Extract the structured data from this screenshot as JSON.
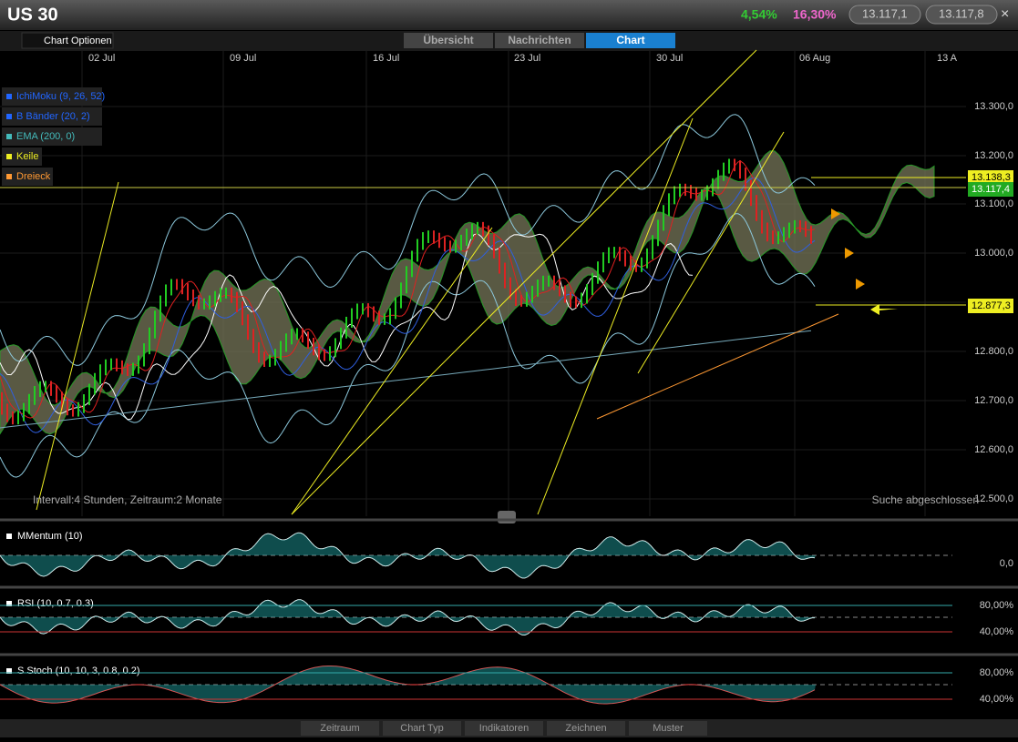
{
  "header": {
    "title": "US 30",
    "change_1": "4,54%",
    "change_2": "16,30%",
    "bid": "13.117,1",
    "ask": "13.117,8",
    "close": "×"
  },
  "chart_options": "Chart Optionen",
  "tabs": [
    "Übersicht",
    "Nachrichten",
    "Chart"
  ],
  "dates": [
    "02 Jul",
    "09 Jul",
    "16 Jul",
    "23 Jul",
    "30 Jul",
    "06 Aug",
    "13 A"
  ],
  "price_axis": [
    "13.300,0",
    "13.200,0",
    "13.100,0",
    "13.000,0",
    "12.800,0",
    "12.700,0",
    "12.600,0",
    "12.500,0"
  ],
  "price_markers": [
    "13.138,3",
    "13.117,4",
    "12.877,3"
  ],
  "indicators": [
    "IchiMoku (9, 26, 52)",
    "B Bänder (20, 2)",
    "EMA (200, 0)",
    "Keile",
    "Dreieck"
  ],
  "info": {
    "interval": "Intervall:4 Stunden, Zeitraum:2 Monate",
    "status": "Suche abgeschlossen"
  },
  "panels": [
    {
      "label": "MMentum (10)",
      "levels": [
        "0,0"
      ]
    },
    {
      "label": "RSI (10, 0.7, 0.3)",
      "levels": [
        "80,00%",
        "40,00%"
      ]
    },
    {
      "label": "S Stoch (10, 10, 3, 0.8, 0.2)",
      "levels": [
        "80,00%",
        "40,00%"
      ]
    }
  ],
  "bottom_menu": [
    "Zeitraum",
    "Chart Typ",
    "Indikatoren",
    "Zeichnen",
    "Muster"
  ]
}
